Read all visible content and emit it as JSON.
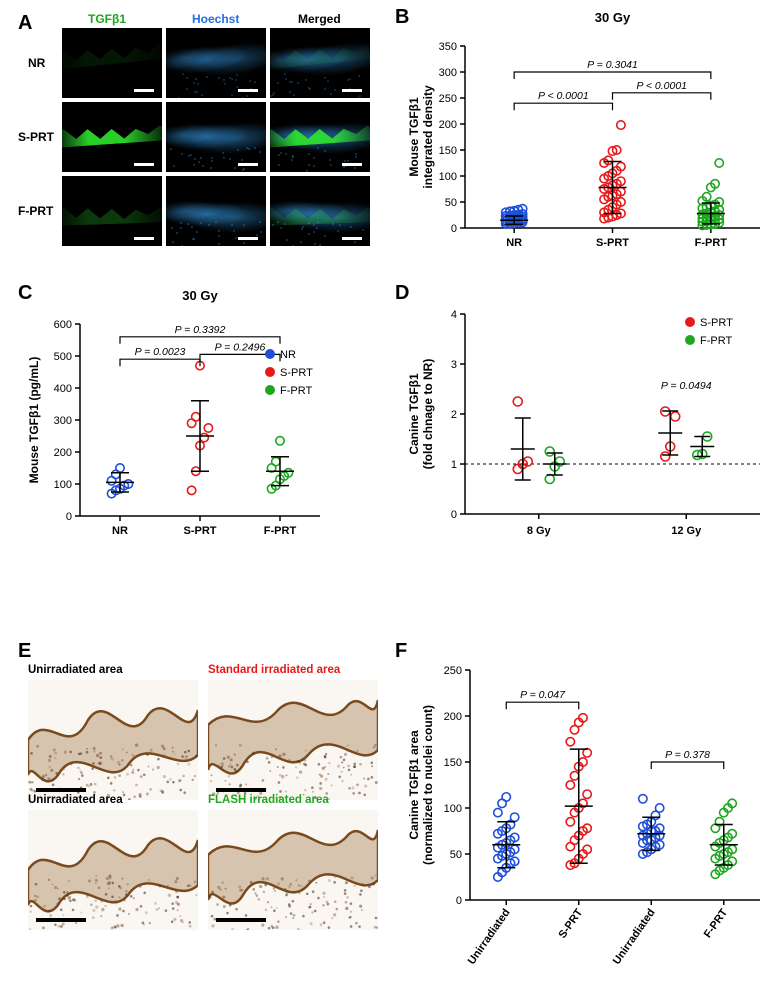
{
  "colors": {
    "nr": "#1f4fd6",
    "sprt": "#e61919",
    "fprt": "#1fa61f",
    "tgfb_green": "#2ee62e",
    "hoechst_blue": "#2ea6ff",
    "black": "#000000"
  },
  "panelA": {
    "label": "A",
    "col_labels": [
      "TGFβ1",
      "Hoechst",
      "Merged"
    ],
    "col_label_colors": [
      "#1fa61f",
      "#1f6fe6",
      "#000000"
    ],
    "row_labels": [
      "NR",
      "S-PRT",
      "F-PRT"
    ]
  },
  "panelB": {
    "label": "B",
    "title": "30 Gy",
    "y_label": "Mouse TGFβ1\nintegrated density",
    "y_lim": [
      0,
      350
    ],
    "y_tick_step": 50,
    "categories": [
      "NR",
      "S-PRT",
      "F-PRT"
    ],
    "cat_colors": [
      "#1f4fd6",
      "#e61919",
      "#1fa61f"
    ],
    "means": [
      15,
      78,
      28
    ],
    "sds": [
      8,
      50,
      20
    ],
    "p_brackets": [
      {
        "a": 0,
        "b": 1,
        "y": 240,
        "text": "P < 0.0001"
      },
      {
        "a": 1,
        "b": 2,
        "y": 260,
        "text": "P < 0.0001"
      },
      {
        "a": 0,
        "b": 2,
        "y": 300,
        "text": "P = 0.3041"
      }
    ],
    "points": {
      "NR": [
        8,
        9,
        10,
        11,
        12,
        13,
        13,
        14,
        15,
        15,
        16,
        17,
        18,
        18,
        19,
        20,
        20,
        21,
        22,
        23,
        24,
        25,
        26,
        27,
        30,
        32,
        33,
        35,
        37,
        8
      ],
      "S-PRT": [
        18,
        20,
        22,
        25,
        28,
        30,
        35,
        40,
        45,
        50,
        55,
        60,
        62,
        65,
        70,
        75,
        78,
        82,
        85,
        90,
        95,
        100,
        105,
        110,
        118,
        125,
        130,
        148,
        150,
        198
      ],
      "F-PRT": [
        5,
        6,
        7,
        8,
        10,
        12,
        13,
        15,
        16,
        17,
        18,
        20,
        22,
        23,
        25,
        26,
        28,
        30,
        32,
        35,
        38,
        40,
        43,
        45,
        50,
        52,
        60,
        78,
        85,
        125
      ]
    }
  },
  "panelC": {
    "label": "C",
    "title": "30 Gy",
    "y_label": "Mouse TGFβ1 (pg/mL)",
    "y_lim": [
      0,
      600
    ],
    "y_tick_step": 100,
    "categories": [
      "NR",
      "S-PRT",
      "F-PRT"
    ],
    "cat_colors": [
      "#1f4fd6",
      "#e61919",
      "#1fa61f"
    ],
    "legend": [
      "NR",
      "S-PRT",
      "F-PRT"
    ],
    "means": [
      105,
      250,
      140
    ],
    "sds": [
      30,
      110,
      45
    ],
    "p_brackets": [
      {
        "a": 0,
        "b": 1,
        "y": 490,
        "text": "P = 0.0023"
      },
      {
        "a": 1,
        "b": 2,
        "y": 505,
        "text": "P = 0.2496"
      },
      {
        "a": 0,
        "b": 2,
        "y": 560,
        "text": "P = 0.3392"
      }
    ],
    "points": {
      "NR": [
        70,
        80,
        85,
        95,
        100,
        110,
        130,
        150
      ],
      "S-PRT": [
        80,
        140,
        220,
        245,
        275,
        290,
        310,
        470
      ],
      "F-PRT": [
        85,
        95,
        115,
        125,
        135,
        150,
        170,
        235
      ]
    }
  },
  "panelD": {
    "label": "D",
    "y_label": "Canine TGFβ1\n(fold chnage to NR)",
    "y_lim": [
      0,
      4
    ],
    "y_tick_step": 1,
    "groups": [
      "8 Gy",
      "12 Gy"
    ],
    "series": [
      {
        "name": "S-PRT",
        "color": "#e61919"
      },
      {
        "name": "F-PRT",
        "color": "#1fa61f"
      }
    ],
    "means": {
      "8 Gy": {
        "S-PRT": 1.3,
        "F-PRT": 1.0
      },
      "12 Gy": {
        "S-PRT": 1.62,
        "F-PRT": 1.35
      }
    },
    "sds": {
      "8 Gy": {
        "S-PRT": 0.62,
        "F-PRT": 0.22
      },
      "12 Gy": {
        "S-PRT": 0.44,
        "F-PRT": 0.2
      }
    },
    "p_text": {
      "text": "P = 0.0494",
      "over": "12 Gy",
      "y": 2.5
    },
    "points": {
      "8 Gy": {
        "S-PRT": [
          0.9,
          1.0,
          1.05,
          2.25
        ],
        "F-PRT": [
          0.7,
          0.95,
          1.05,
          1.25
        ]
      },
      "12 Gy": {
        "S-PRT": [
          1.15,
          1.35,
          1.95,
          2.05
        ],
        "F-PRT": [
          1.18,
          1.2,
          1.55
        ]
      }
    },
    "ref_line": 1.0
  },
  "panelE": {
    "label": "E",
    "cells": [
      {
        "title": "Unirradiated area",
        "color": "#000000"
      },
      {
        "title": "Standard irradiated area",
        "color": "#e61919"
      },
      {
        "title": "Unirradiated area",
        "color": "#000000"
      },
      {
        "title": "FLASH irradiated area",
        "color": "#1fa61f"
      }
    ]
  },
  "panelF": {
    "label": "F",
    "y_label": "Canine TGFβ1 area\n(normalized to nuclei count)",
    "y_lim": [
      0,
      250
    ],
    "y_tick_step": 50,
    "categories": [
      "Unirradiated",
      "S-PRT",
      "Unirradiated",
      "F-PRT"
    ],
    "cat_colors": [
      "#1f4fd6",
      "#e61919",
      "#1f4fd6",
      "#1fa61f"
    ],
    "means": [
      60,
      102,
      72,
      60
    ],
    "sds": [
      25,
      62,
      18,
      22
    ],
    "p_brackets": [
      {
        "a": 0,
        "b": 1,
        "y": 215,
        "text": "P = 0.047"
      },
      {
        "a": 2,
        "b": 3,
        "y": 150,
        "text": "P = 0.378"
      }
    ],
    "points": {
      "0": [
        25,
        30,
        35,
        40,
        42,
        45,
        48,
        50,
        52,
        55,
        57,
        60,
        62,
        65,
        68,
        72,
        75,
        78,
        82,
        90,
        95,
        105,
        112
      ],
      "1": [
        38,
        40,
        45,
        50,
        55,
        58,
        65,
        70,
        75,
        78,
        85,
        95,
        100,
        105,
        115,
        125,
        135,
        145,
        150,
        160,
        172,
        185,
        193,
        198
      ],
      "2": [
        50,
        52,
        55,
        58,
        60,
        62,
        65,
        65,
        68,
        70,
        70,
        72,
        75,
        75,
        78,
        80,
        82,
        85,
        92,
        100,
        110
      ],
      "3": [
        28,
        32,
        35,
        38,
        42,
        45,
        48,
        50,
        52,
        55,
        58,
        62,
        65,
        68,
        72,
        78,
        85,
        95,
        100,
        105
      ]
    }
  }
}
